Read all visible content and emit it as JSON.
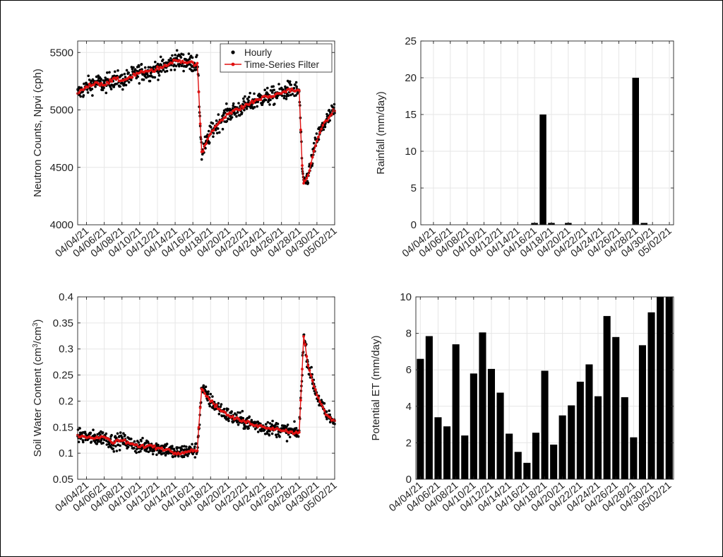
{
  "colors": {
    "hourly": "#000000",
    "filter": "#e01010",
    "bar": "#000000",
    "grid": "#e6e6e6",
    "axis": "#262626"
  },
  "chart_data": [
    {
      "id": "neutron",
      "type": "scatter",
      "ylabel": "Neutron Counts, Npvi (cph)",
      "xlim": [
        "04/03/21",
        "05/02/21"
      ],
      "ylim": [
        4000,
        5600
      ],
      "yticks": [
        4000,
        4500,
        5000,
        5500
      ],
      "xticklabels": [
        "04/04/21",
        "04/06/21",
        "04/08/21",
        "04/10/21",
        "04/12/21",
        "04/14/21",
        "04/16/21",
        "04/18/21",
        "04/20/21",
        "04/22/21",
        "04/24/21",
        "04/26/21",
        "04/28/21",
        "04/30/21",
        "05/02/21"
      ],
      "grid": true,
      "legend": {
        "placement": "top-right",
        "entries": [
          "Hourly",
          "Time-Series Filter"
        ]
      },
      "series": [
        {
          "name": "Hourly",
          "style": "dots",
          "note_scatter": 70
        },
        {
          "name": "Time-Series Filter",
          "style": "line-markers"
        }
      ],
      "filter_points": [
        [
          "04/03/21 00:00",
          5140
        ],
        [
          "04/04/21 00:00",
          5200
        ],
        [
          "04/05/21 00:00",
          5240
        ],
        [
          "04/06/21 00:00",
          5220
        ],
        [
          "04/07/21 00:00",
          5270
        ],
        [
          "04/08/21 00:00",
          5250
        ],
        [
          "04/09/21 00:00",
          5290
        ],
        [
          "04/10/21 00:00",
          5330
        ],
        [
          "04/11/21 00:00",
          5330
        ],
        [
          "04/12/21 00:00",
          5360
        ],
        [
          "04/13/21 00:00",
          5380
        ],
        [
          "04/14/21 00:00",
          5440
        ],
        [
          "04/15/21 00:00",
          5420
        ],
        [
          "04/16/21 12:00",
          5400
        ],
        [
          "04/17/21 00:00",
          4620
        ],
        [
          "04/18/21 00:00",
          4800
        ],
        [
          "04/19/21 00:00",
          4900
        ],
        [
          "04/20/21 00:00",
          4970
        ],
        [
          "04/21/21 00:00",
          5000
        ],
        [
          "04/22/21 00:00",
          5040
        ],
        [
          "04/23/21 00:00",
          5080
        ],
        [
          "04/24/21 00:00",
          5110
        ],
        [
          "04/25/21 00:00",
          5120
        ],
        [
          "04/26/21 00:00",
          5150
        ],
        [
          "04/27/21 00:00",
          5180
        ],
        [
          "04/28/21 00:00",
          5160
        ],
        [
          "04/28/21 10:00",
          4350
        ],
        [
          "04/29/21 00:00",
          4420
        ],
        [
          "04/30/21 00:00",
          4750
        ],
        [
          "05/01/21 00:00",
          4900
        ],
        [
          "05/02/21 00:00",
          5000
        ]
      ]
    },
    {
      "id": "rainfall",
      "type": "bar",
      "ylabel": "Rainfall (mm/day)",
      "ylim": [
        0,
        25
      ],
      "yticks": [
        0,
        5,
        10,
        15,
        20,
        25
      ],
      "xticklabels": [
        "04/04/21",
        "04/06/21",
        "04/08/21",
        "04/10/21",
        "04/12/21",
        "04/14/21",
        "04/16/21",
        "04/18/21",
        "04/20/21",
        "04/22/21",
        "04/24/21",
        "04/26/21",
        "04/28/21",
        "04/30/21",
        "05/02/21"
      ],
      "grid": true,
      "categories": [
        "04/03/21",
        "04/04/21",
        "04/05/21",
        "04/06/21",
        "04/07/21",
        "04/08/21",
        "04/09/21",
        "04/10/21",
        "04/11/21",
        "04/12/21",
        "04/13/21",
        "04/14/21",
        "04/15/21",
        "04/16/21",
        "04/17/21",
        "04/18/21",
        "04/19/21",
        "04/20/21",
        "04/21/21",
        "04/22/21",
        "04/23/21",
        "04/24/21",
        "04/25/21",
        "04/26/21",
        "04/27/21",
        "04/28/21",
        "04/29/21",
        "04/30/21",
        "05/01/21",
        "05/02/21"
      ],
      "values": [
        0,
        0,
        0,
        0,
        0,
        0,
        0,
        0,
        0,
        0,
        0,
        0,
        0,
        0.25,
        15,
        0.25,
        0,
        0.25,
        0,
        0,
        0,
        0,
        0,
        0,
        0,
        20,
        0.25,
        0,
        0,
        0
      ]
    },
    {
      "id": "swc",
      "type": "scatter",
      "ylabel": "Soil Water Content (cm³/cm³)",
      "ylabel_parts": [
        "Soil Water Content (cm",
        "3",
        "/cm",
        "3",
        ")"
      ],
      "ylim": [
        0.05,
        0.4
      ],
      "yticks": [
        0.05,
        0.1,
        0.15,
        0.2,
        0.25,
        0.3,
        0.35,
        0.4
      ],
      "xticklabels": [
        "04/04/21",
        "04/06/21",
        "04/08/21",
        "04/10/21",
        "04/12/21",
        "04/14/21",
        "04/16/21",
        "04/18/21",
        "04/20/21",
        "04/22/21",
        "04/24/21",
        "04/26/21",
        "04/28/21",
        "04/30/21",
        "05/02/21"
      ],
      "grid": true,
      "series": [
        {
          "name": "Hourly",
          "style": "dots",
          "note_scatter": 0.013
        },
        {
          "name": "Time-Series Filter",
          "style": "line-markers"
        }
      ],
      "filter_points": [
        [
          "04/03/21 00:00",
          0.135
        ],
        [
          "04/05/21 00:00",
          0.128
        ],
        [
          "04/06/21 00:00",
          0.132
        ],
        [
          "04/07/21 00:00",
          0.12
        ],
        [
          "04/08/21 00:00",
          0.125
        ],
        [
          "04/09/21 00:00",
          0.118
        ],
        [
          "04/10/21 00:00",
          0.112
        ],
        [
          "04/11/21 00:00",
          0.115
        ],
        [
          "04/12/21 00:00",
          0.11
        ],
        [
          "04/13/21 00:00",
          0.108
        ],
        [
          "04/14/21 00:00",
          0.1
        ],
        [
          "04/15/21 00:00",
          0.103
        ],
        [
          "04/16/21 12:00",
          0.107
        ],
        [
          "04/17/21 00:00",
          0.225
        ],
        [
          "04/18/21 00:00",
          0.2
        ],
        [
          "04/19/21 00:00",
          0.185
        ],
        [
          "04/20/21 00:00",
          0.172
        ],
        [
          "04/21/21 00:00",
          0.165
        ],
        [
          "04/22/21 00:00",
          0.16
        ],
        [
          "04/23/21 00:00",
          0.155
        ],
        [
          "04/24/21 00:00",
          0.15
        ],
        [
          "04/25/21 00:00",
          0.148
        ],
        [
          "04/26/21 00:00",
          0.145
        ],
        [
          "04/27/21 00:00",
          0.14
        ],
        [
          "04/28/21 00:00",
          0.14
        ],
        [
          "04/28/21 12:00",
          0.325
        ],
        [
          "04/29/21 00:00",
          0.27
        ],
        [
          "04/30/21 00:00",
          0.21
        ],
        [
          "05/01/21 00:00",
          0.175
        ],
        [
          "05/02/21 00:00",
          0.16
        ]
      ]
    },
    {
      "id": "pet",
      "type": "bar",
      "ylabel": "Potential ET (mm/day)",
      "ylim": [
        0,
        10
      ],
      "yticks": [
        0,
        2,
        4,
        6,
        8,
        10
      ],
      "xticklabels": [
        "04/04/21",
        "04/06/21",
        "04/08/21",
        "04/10/21",
        "04/12/21",
        "04/14/21",
        "04/16/21",
        "04/18/21",
        "04/20/21",
        "04/22/21",
        "04/24/21",
        "04/26/21",
        "04/28/21",
        "04/30/21",
        "05/02/21"
      ],
      "grid": true,
      "categories": [
        "04/04/21",
        "04/05/21",
        "04/06/21",
        "04/07/21",
        "04/08/21",
        "04/09/21",
        "04/10/21",
        "04/11/21",
        "04/12/21",
        "04/13/21",
        "04/14/21",
        "04/15/21",
        "04/16/21",
        "04/17/21",
        "04/18/21",
        "04/19/21",
        "04/20/21",
        "04/21/21",
        "04/22/21",
        "04/23/21",
        "04/24/21",
        "04/25/21",
        "04/26/21",
        "04/27/21",
        "04/28/21",
        "04/29/21",
        "04/30/21",
        "05/01/21",
        "05/02/21"
      ],
      "values": [
        6.6,
        7.85,
        3.4,
        2.9,
        7.4,
        2.4,
        5.8,
        8.05,
        6.05,
        4.75,
        2.5,
        1.5,
        0.9,
        2.55,
        5.95,
        1.9,
        3.5,
        4.05,
        5.35,
        6.3,
        4.55,
        8.95,
        7.8,
        4.5,
        2.3,
        7.35,
        9.15,
        10,
        10
      ]
    }
  ]
}
